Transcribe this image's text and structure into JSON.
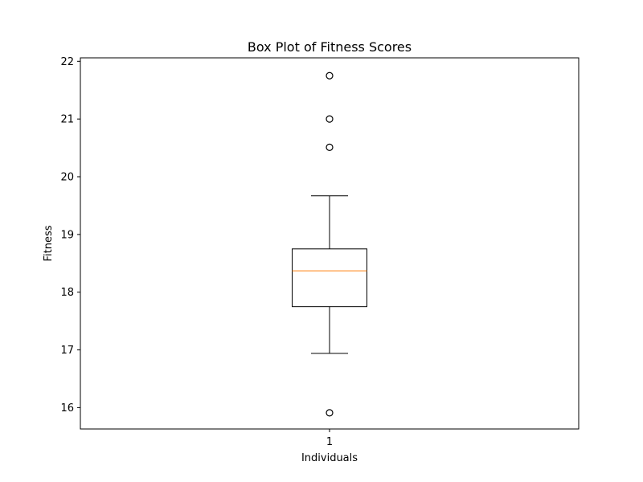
{
  "chart_data": {
    "type": "box",
    "title": "Box Plot of Fitness Scores",
    "xlabel": "Individuals",
    "ylabel": "Fitness",
    "categories": [
      "1"
    ],
    "ylim": [
      15.63,
      22.06
    ],
    "yticks": [
      16,
      17,
      18,
      19,
      20,
      21,
      22
    ],
    "grid": false,
    "boxes": [
      {
        "category": "1",
        "whisker_low": 16.94,
        "q1": 17.75,
        "median": 18.37,
        "q3": 18.75,
        "whisker_high": 19.67,
        "outliers": [
          15.91,
          20.51,
          21.0,
          21.75
        ]
      }
    ],
    "colors": {
      "box": "#000000",
      "median": "#ff7f0e",
      "outlier_edge": "#000000"
    }
  }
}
